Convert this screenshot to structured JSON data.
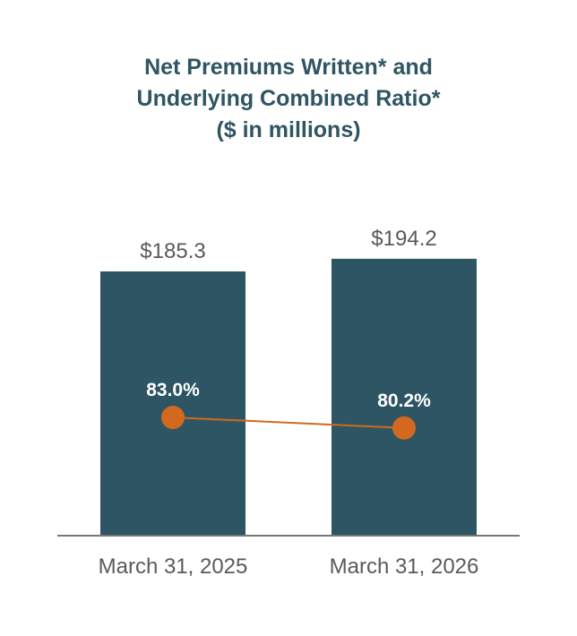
{
  "chart_data": {
    "type": "bar",
    "title_lines": [
      "Net Premiums Written* and",
      "Underlying Combined Ratio*",
      "($ in millions)"
    ],
    "categories": [
      "March 31, 2025",
      "March 31, 2026"
    ],
    "series": [
      {
        "name": "Net Premiums Written*",
        "type": "bar",
        "values": [
          185.3,
          194.2
        ],
        "labels": [
          "$185.3",
          "$194.2"
        ],
        "color": "#2e5564"
      },
      {
        "name": "Underlying Combined Ratio*",
        "type": "line",
        "values": [
          83.0,
          80.2
        ],
        "labels": [
          "83.0%",
          "80.2%"
        ],
        "color": "#d2691e"
      }
    ],
    "colors": {
      "title": "#2f5563",
      "value_text": "#5a5a5a",
      "axis": "#777777",
      "point_label": "#ffffff"
    },
    "grid": false,
    "legend": "none"
  }
}
